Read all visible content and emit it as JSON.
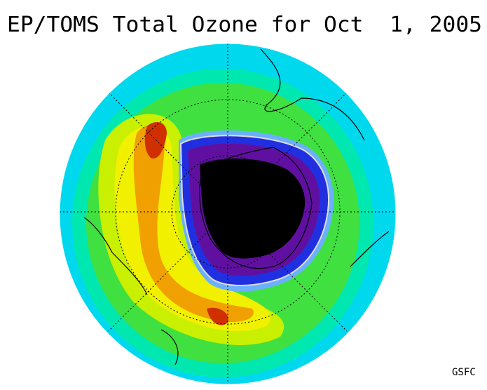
{
  "header": {
    "title": "EP/TOMS Total Ozone for Oct  1, 2005"
  },
  "footer": {
    "credit": "GSFC"
  }
}
